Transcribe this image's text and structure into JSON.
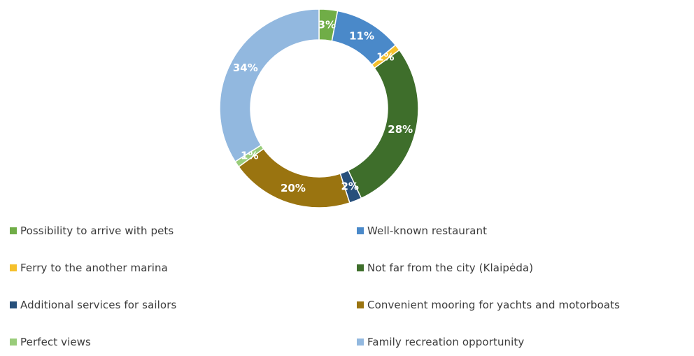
{
  "chart_data": {
    "type": "donut",
    "title": "",
    "legend_position": "bottom",
    "series": [
      {
        "label": "Possibility to arrive with pets",
        "value": 3,
        "value_label": "3%",
        "color": "#70ad47"
      },
      {
        "label": "Well-known restaurant",
        "value": 11,
        "value_label": "11%",
        "color": "#4a89c9"
      },
      {
        "label": "Ferry to the another marina",
        "value": 1,
        "value_label": "1%",
        "color": "#f5c02c"
      },
      {
        "label": "Not far from the city (Klaipėda)",
        "value": 28,
        "value_label": "28%",
        "color": "#3e6e2b"
      },
      {
        "label": "Additional services for sailors",
        "value": 2,
        "value_label": "2%",
        "color": "#27507b"
      },
      {
        "label": "Convenient mooring for yachts and motorboats",
        "value": 20,
        "value_label": "20%",
        "color": "#9a7410"
      },
      {
        "label": "Perfect views",
        "value": 1,
        "value_label": "1%",
        "color": "#99cc7a"
      },
      {
        "label": "Family recreation opportunity",
        "value": 34,
        "value_label": "34%",
        "color": "#92b8df"
      }
    ]
  }
}
